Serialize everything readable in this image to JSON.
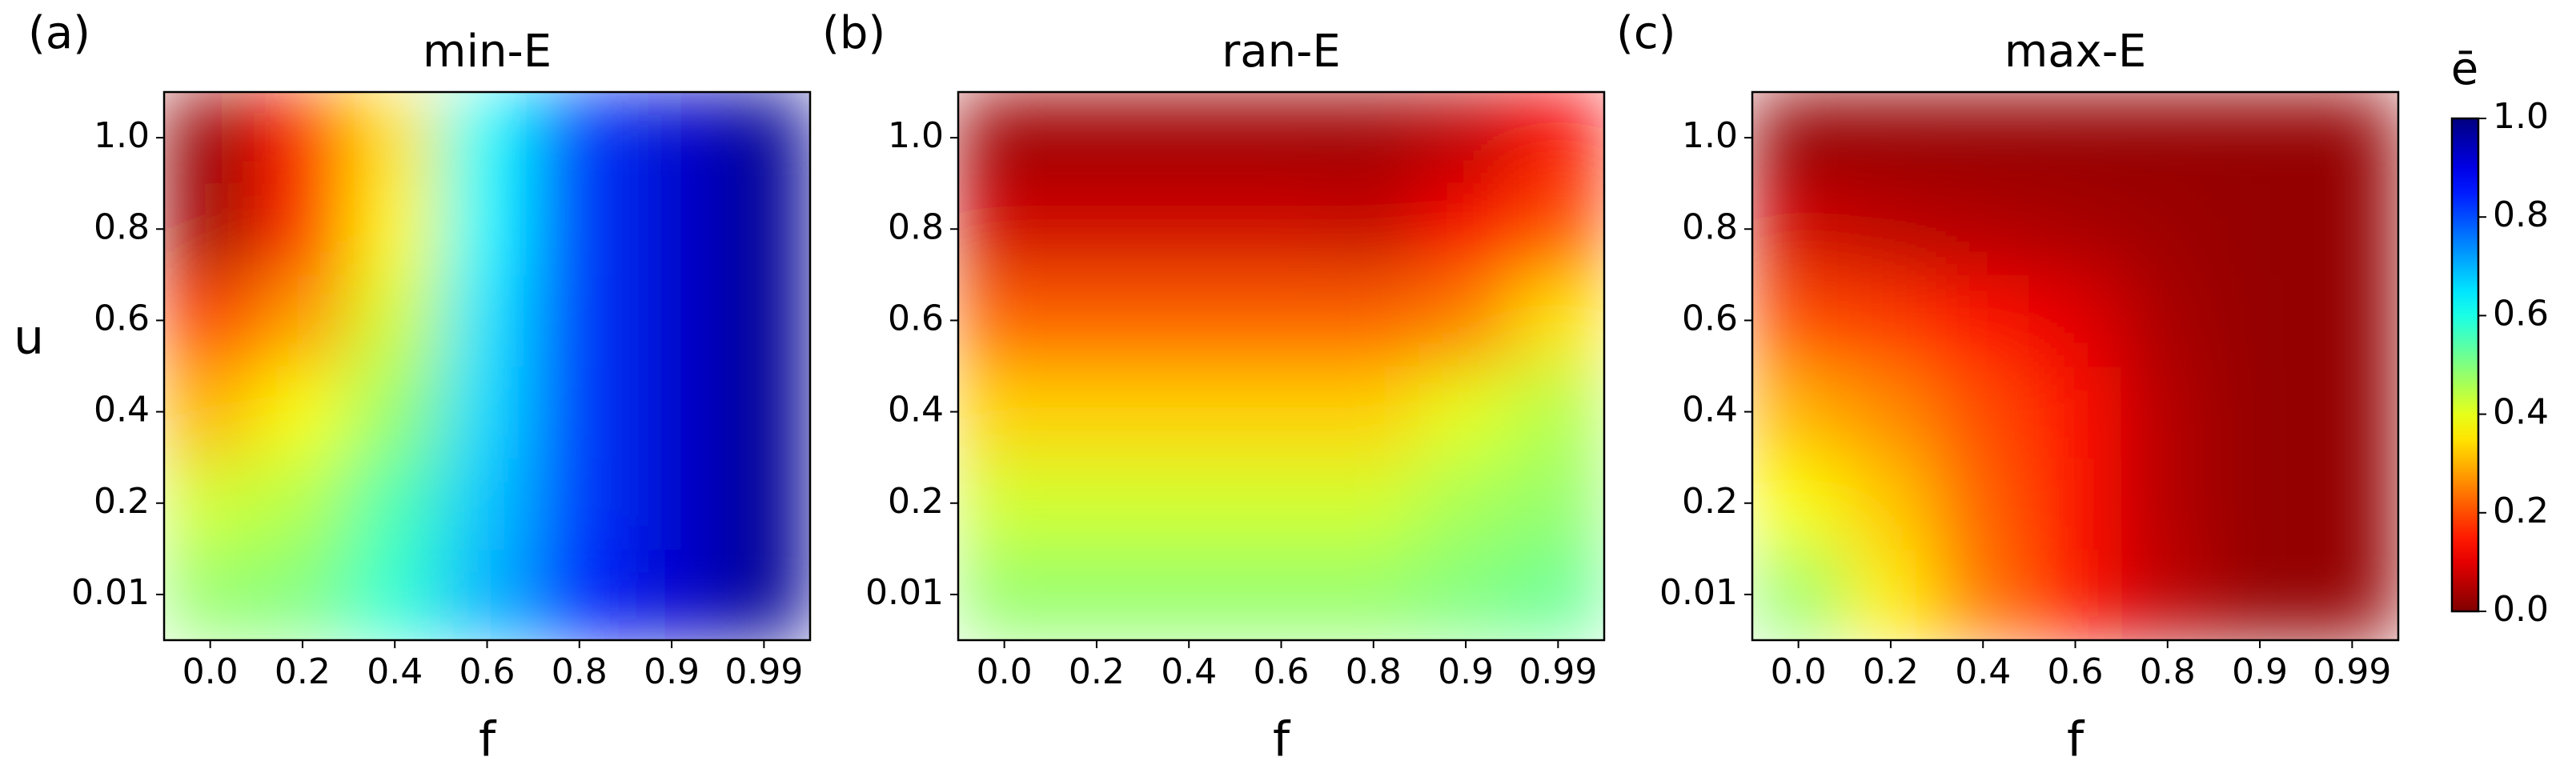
{
  "chart_data": [
    {
      "type": "heatmap",
      "panel": "(a)",
      "title": "min-E",
      "x_label": "f",
      "y_label": "u",
      "categories": [
        "0.0",
        "0.2",
        "0.4",
        "0.6",
        "0.8",
        "0.9",
        "0.99"
      ],
      "y_categories": [
        "0.01",
        "0.2",
        "0.4",
        "0.6",
        "0.8",
        "1.0"
      ],
      "colormap": "jet_r",
      "values": [
        [
          0.48,
          0.5,
          0.58,
          0.7,
          0.84,
          0.92,
          0.98
        ],
        [
          0.42,
          0.45,
          0.55,
          0.68,
          0.82,
          0.92,
          0.98
        ],
        [
          0.3,
          0.38,
          0.48,
          0.66,
          0.82,
          0.92,
          0.98
        ],
        [
          0.18,
          0.28,
          0.42,
          0.65,
          0.82,
          0.92,
          0.98
        ],
        [
          0.03,
          0.17,
          0.37,
          0.63,
          0.82,
          0.92,
          0.98
        ],
        [
          0.02,
          0.15,
          0.35,
          0.62,
          0.82,
          0.92,
          0.98
        ]
      ]
    },
    {
      "type": "heatmap",
      "panel": "(b)",
      "title": "ran-E",
      "x_label": "f",
      "categories": [
        "0.0",
        "0.2",
        "0.4",
        "0.6",
        "0.8",
        "0.9",
        "0.99"
      ],
      "y_categories": [
        "0.01",
        "0.2",
        "0.4",
        "0.6",
        "0.8",
        "1.0"
      ],
      "colormap": "jet_r",
      "values": [
        [
          0.48,
          0.48,
          0.48,
          0.48,
          0.48,
          0.5,
          0.52
        ],
        [
          0.42,
          0.42,
          0.42,
          0.42,
          0.42,
          0.46,
          0.48
        ],
        [
          0.33,
          0.33,
          0.33,
          0.33,
          0.33,
          0.4,
          0.45
        ],
        [
          0.22,
          0.22,
          0.22,
          0.22,
          0.22,
          0.25,
          0.35
        ],
        [
          0.08,
          0.08,
          0.08,
          0.08,
          0.07,
          0.12,
          0.2
        ],
        [
          0.03,
          0.03,
          0.03,
          0.03,
          0.03,
          0.06,
          0.12
        ]
      ]
    },
    {
      "type": "heatmap",
      "panel": "(c)",
      "title": "max-E",
      "x_label": "f",
      "categories": [
        "0.0",
        "0.2",
        "0.4",
        "0.6",
        "0.8",
        "0.9",
        "0.99"
      ],
      "y_categories": [
        "0.01",
        "0.2",
        "0.4",
        "0.6",
        "0.8",
        "1.0"
      ],
      "colormap": "jet_r",
      "values": [
        [
          0.48,
          0.36,
          0.24,
          0.14,
          0.06,
          0.02,
          0.02
        ],
        [
          0.38,
          0.32,
          0.22,
          0.14,
          0.05,
          0.02,
          0.02
        ],
        [
          0.3,
          0.26,
          0.2,
          0.14,
          0.05,
          0.02,
          0.02
        ],
        [
          0.2,
          0.18,
          0.14,
          0.1,
          0.04,
          0.02,
          0.02
        ],
        [
          0.08,
          0.06,
          0.05,
          0.04,
          0.03,
          0.02,
          0.02
        ],
        [
          0.02,
          0.02,
          0.02,
          0.02,
          0.02,
          0.02,
          0.02
        ]
      ],
      "colorbar": {
        "label": "ē",
        "lim": [
          0.0,
          1.0
        ],
        "ticks": [
          {
            "value": 0,
            "label": "0.0"
          },
          0.2,
          0.4,
          0.6,
          0.8,
          {
            "value": 1,
            "label": "1.0"
          }
        ]
      }
    }
  ]
}
